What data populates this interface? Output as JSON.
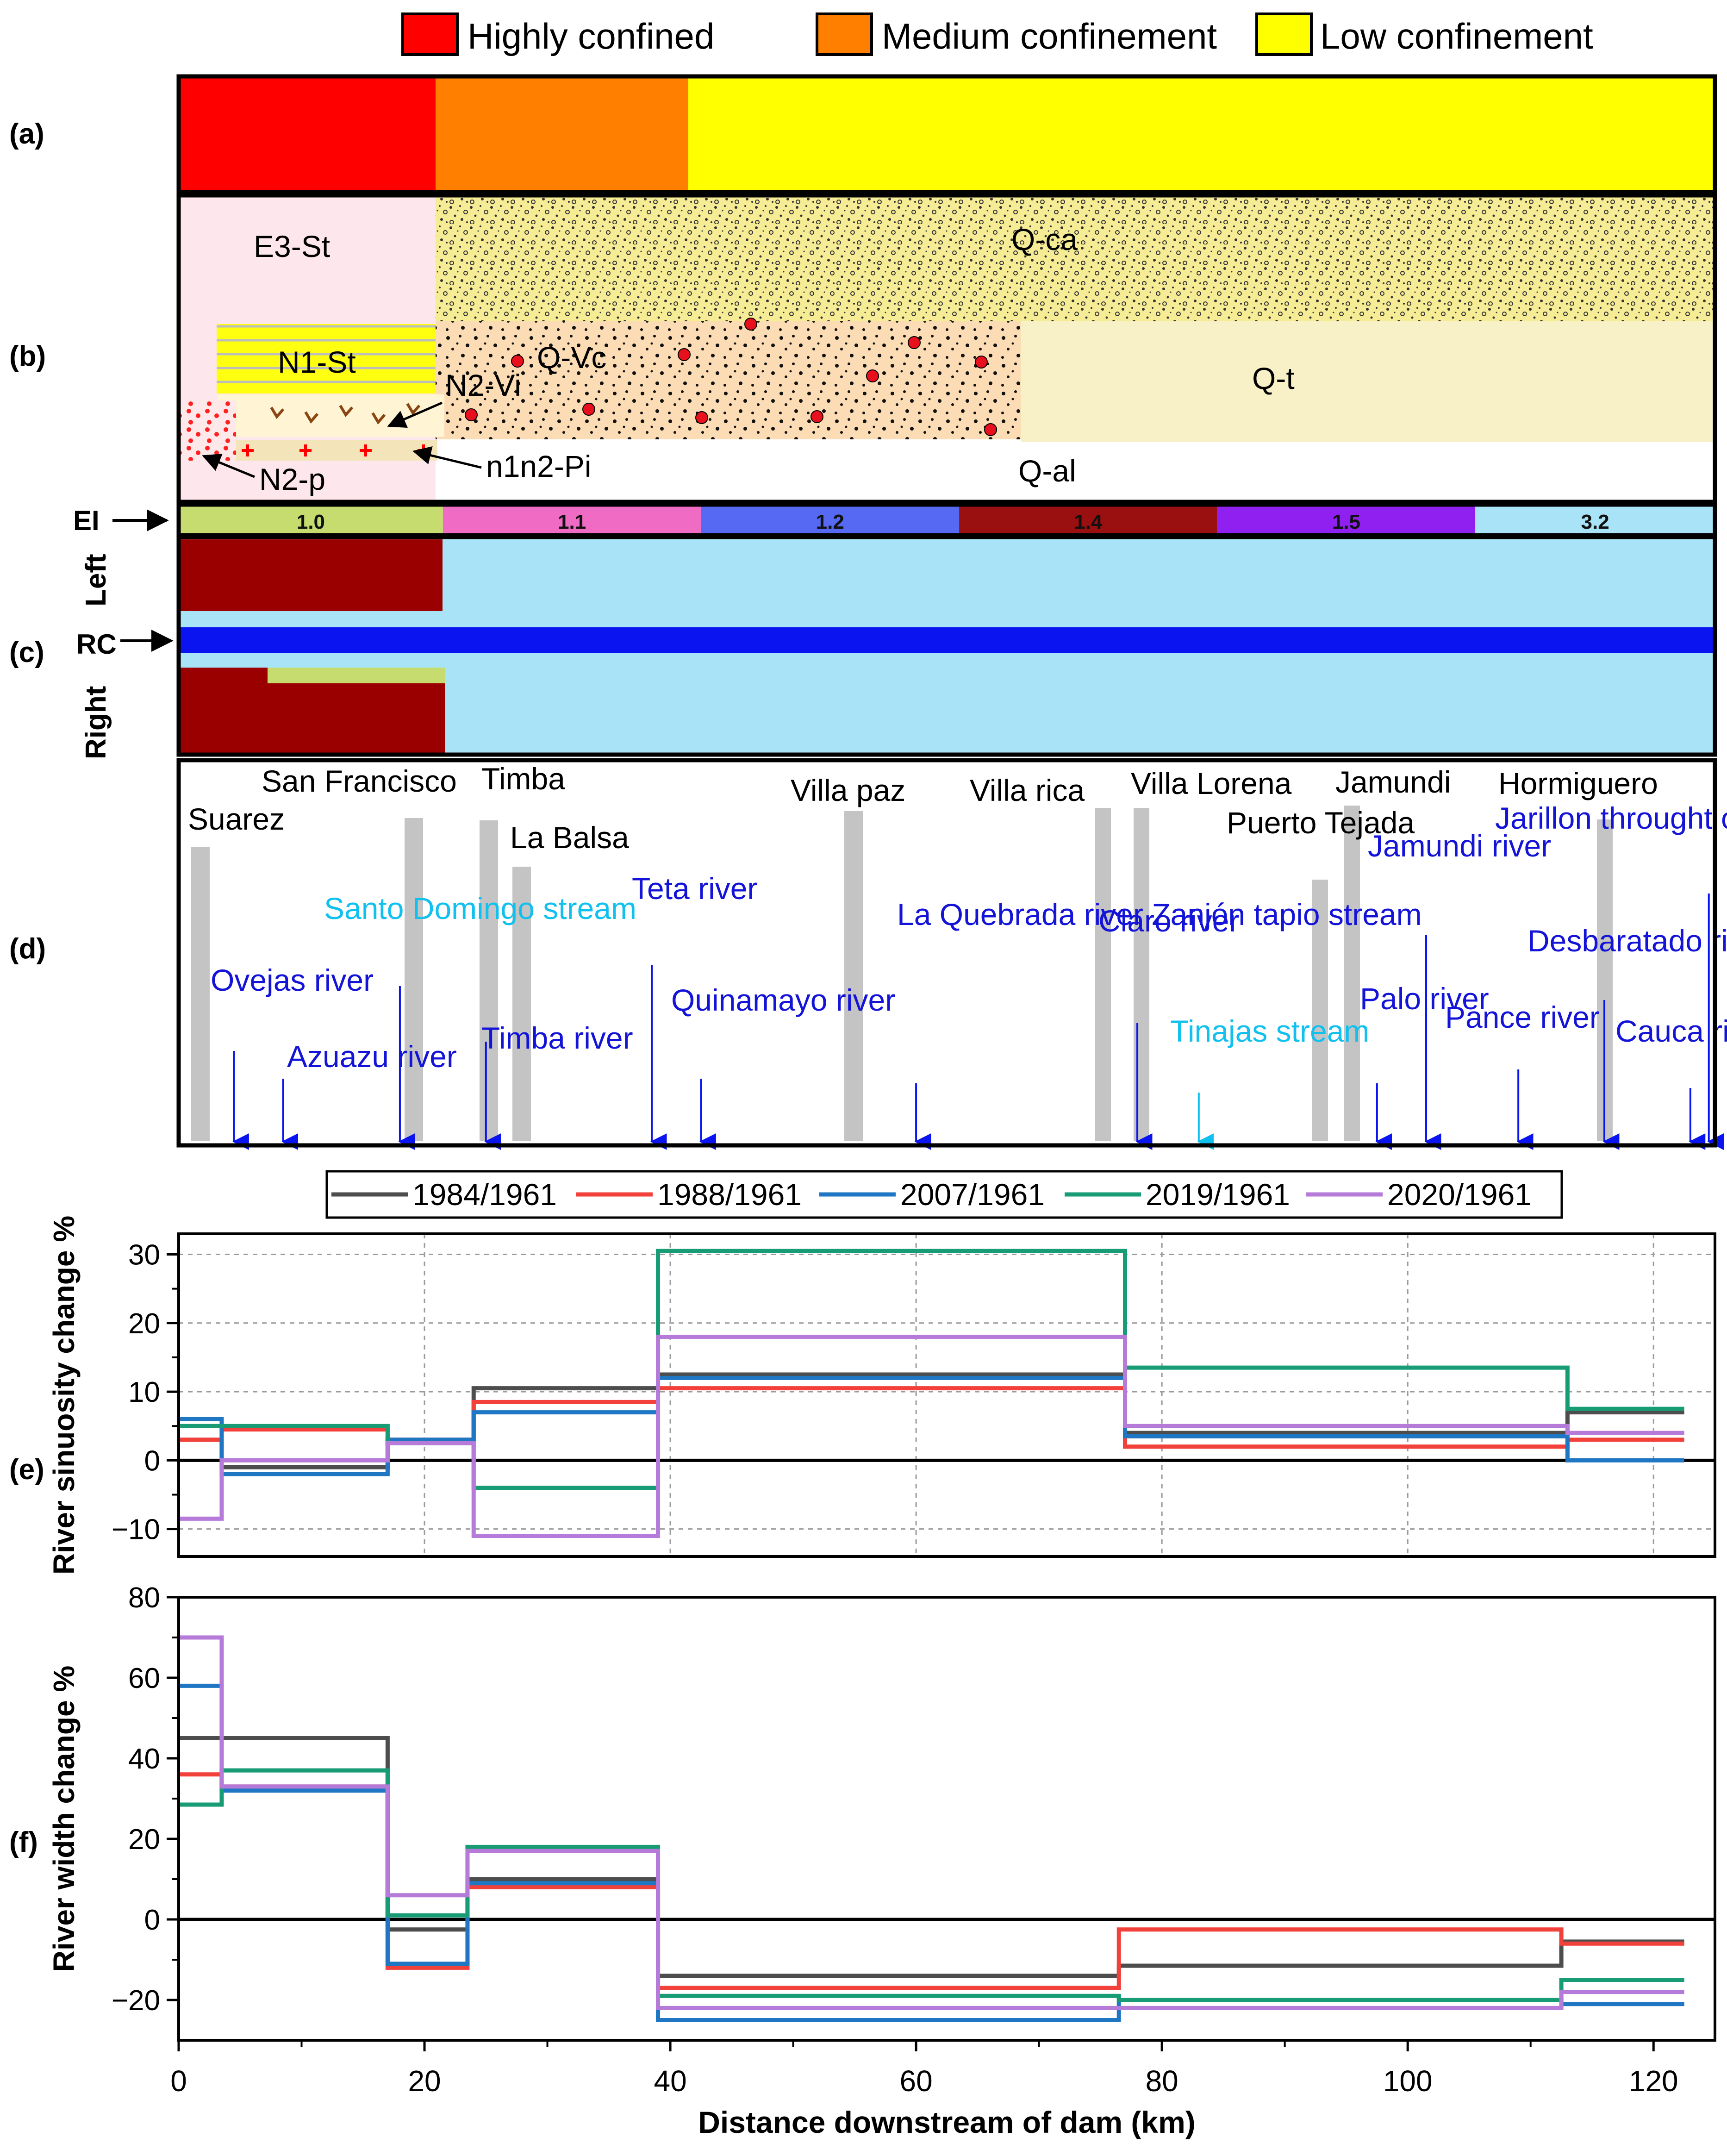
{
  "legend_top": [
    {
      "label": "Highly confined",
      "color": "#ff0000"
    },
    {
      "label": "Medium confinement",
      "color": "#ff8000"
    },
    {
      "label": "Low confinement",
      "color": "#ffff00"
    }
  ],
  "panel_labels": {
    "a": "(a)",
    "b": "(b)",
    "c": "(c)",
    "d": "(d)",
    "e": "(e)",
    "f": "(f)"
  },
  "confinement": [
    {
      "from": 0,
      "to": 21,
      "level": "Highly confined"
    },
    {
      "from": 21,
      "to": 41.5,
      "level": "Medium confinement"
    },
    {
      "from": 41.5,
      "to": 125,
      "level": "Low confinement"
    }
  ],
  "geology": [
    "E3-St",
    "Q-ca",
    "N1-St",
    "Q-Vc",
    "N2-Vi",
    "Q-t",
    "N2-p",
    "n1n2-Pi",
    "Q-al"
  ],
  "ei": {
    "label": "EI",
    "segments": [
      {
        "from": 0,
        "to": 21.5,
        "value": "1.0",
        "color": "#c6dc6e"
      },
      {
        "from": 21.5,
        "to": 42.5,
        "value": "1.1",
        "color": "#f06cc4"
      },
      {
        "from": 42.5,
        "to": 63.5,
        "value": "1.2",
        "color": "#5569f2"
      },
      {
        "from": 63.5,
        "to": 84.5,
        "value": "1.4",
        "color": "#9a0f0f"
      },
      {
        "from": 84.5,
        "to": 105.5,
        "value": "1.5",
        "color": "#8f20f0"
      },
      {
        "from": 105.5,
        "to": 125,
        "value": "3.2",
        "color": "#a9e3f7"
      }
    ]
  },
  "rc": {
    "left_label": "Left",
    "right_label": "Right",
    "rc_label": "RC",
    "fill_color": "#a9e3f7",
    "band_color": "#9a0000",
    "channel_color": "#0a14f0"
  },
  "towns": [
    {
      "name": "Suarez",
      "km": 2
    },
    {
      "name": "San Francisco",
      "km": 19
    },
    {
      "name": "Timba",
      "km": 25
    },
    {
      "name": "La Balsa",
      "km": 28
    },
    {
      "name": "Villa paz",
      "km": 55
    },
    {
      "name": "Villa rica",
      "km": 75
    },
    {
      "name": "Villa Lorena",
      "km": 78.5
    },
    {
      "name": "Puerto Tejada",
      "km": 93
    },
    {
      "name": "Jamundi",
      "km": 95.5
    },
    {
      "name": "Hormiguero",
      "km": 115
    }
  ],
  "tributaries": [
    {
      "name": "Ovejas river",
      "km": 4.5
    },
    {
      "name": "Azuazu river",
      "km": 8.5
    },
    {
      "name": "Santo Domingo stream",
      "km": 18
    },
    {
      "name": "Timba river",
      "km": 25
    },
    {
      "name": "Teta river",
      "km": 38.5
    },
    {
      "name": "Quinamayo river",
      "km": 42.5
    },
    {
      "name": "La Quebrada river Zanjón tapio stream",
      "km": 60
    },
    {
      "name": "Claro river",
      "km": 78
    },
    {
      "name": "Tinajas stream",
      "km": 83
    },
    {
      "name": "Palo river",
      "km": 97.5
    },
    {
      "name": "Jamundi river",
      "km": 101.5
    },
    {
      "name": "Pance river",
      "km": 109
    },
    {
      "name": "Desbaratado river",
      "km": 116
    },
    {
      "name": "Cauca river",
      "km": 123
    },
    {
      "name": "Jarillon throught of Cali",
      "km": 124.5
    }
  ],
  "chart_data": [
    {
      "type": "line",
      "step": true,
      "panel": "(e)",
      "xlabel": "",
      "ylabel": "River sinuosity change %",
      "xlim": [
        0,
        125
      ],
      "ylim": [
        -14,
        33
      ],
      "yticks": [
        -10,
        0,
        10,
        20,
        30
      ],
      "grid": true,
      "legend": "top",
      "series": [
        {
          "name": "1984/1961",
          "color": "#4d4d4d",
          "x": [
            0,
            3.5,
            17,
            24,
            39,
            77,
            113,
            122.5
          ],
          "values": [
            3,
            -1,
            3,
            10.5,
            12.5,
            4,
            7,
            7
          ]
        },
        {
          "name": "1988/1961",
          "color": "#f2413a",
          "x": [
            0,
            3.5,
            17,
            24,
            39,
            77,
            113,
            122.5
          ],
          "values": [
            3,
            4.5,
            3,
            8.5,
            10.5,
            2,
            3,
            3
          ]
        },
        {
          "name": "2007/1961",
          "color": "#1f77c4",
          "x": [
            0,
            3.5,
            17,
            24,
            39,
            77,
            113,
            122.5
          ],
          "values": [
            6,
            -2,
            3,
            7,
            12,
            3.5,
            0,
            0
          ]
        },
        {
          "name": "2019/1961",
          "color": "#179c76",
          "x": [
            0,
            3.5,
            17,
            24,
            39,
            77,
            113,
            122.5
          ],
          "values": [
            5,
            5,
            2.5,
            -4,
            30.5,
            13.5,
            7.5,
            7.5
          ]
        },
        {
          "name": "2020/1961",
          "color": "#b67ad9",
          "x": [
            0,
            3.5,
            17,
            24,
            39,
            77,
            113,
            122.5
          ],
          "values": [
            -8.5,
            0,
            2.5,
            -11,
            18,
            5,
            4,
            4
          ]
        }
      ]
    },
    {
      "type": "line",
      "step": true,
      "panel": "(f)",
      "xlabel": "Distance downstream of dam (km)",
      "ylabel": "River width change %",
      "xlim": [
        0,
        125
      ],
      "ylim": [
        -30,
        80
      ],
      "xticks": [
        0,
        20,
        40,
        60,
        80,
        100,
        120
      ],
      "yticks": [
        -20,
        0,
        20,
        40,
        60,
        80
      ],
      "grid": false,
      "series": [
        {
          "name": "1984/1961",
          "color": "#4d4d4d",
          "x": [
            0,
            17,
            23.5,
            39,
            76.5,
            112.5,
            122.5
          ],
          "values": [
            45,
            -2.5,
            10,
            -14,
            -11.5,
            -5.5,
            -5.5
          ]
        },
        {
          "name": "1988/1961",
          "color": "#f2413a",
          "x": [
            0,
            3.5,
            17,
            23.5,
            39,
            76.5,
            112.5,
            122.5
          ],
          "values": [
            36,
            33,
            -12,
            8,
            -17,
            -2.5,
            -6,
            -6
          ]
        },
        {
          "name": "2007/1961",
          "color": "#1f77c4",
          "x": [
            0,
            3.5,
            17,
            23.5,
            39,
            76.5,
            112.5,
            122.5
          ],
          "values": [
            58,
            32,
            -11,
            9,
            -25,
            -20,
            -21,
            -21
          ]
        },
        {
          "name": "2019/1961",
          "color": "#179c76",
          "x": [
            0,
            3.5,
            17,
            23.5,
            39,
            76.5,
            112.5,
            122.5
          ],
          "values": [
            28.5,
            37,
            1,
            18,
            -19,
            -20,
            -15,
            -15
          ]
        },
        {
          "name": "2020/1961",
          "color": "#b67ad9",
          "x": [
            0,
            3.5,
            17,
            23.5,
            39,
            76.5,
            112.5,
            122.5
          ],
          "values": [
            70,
            33,
            6,
            17,
            -22,
            -22,
            -18,
            -18
          ]
        }
      ]
    }
  ]
}
